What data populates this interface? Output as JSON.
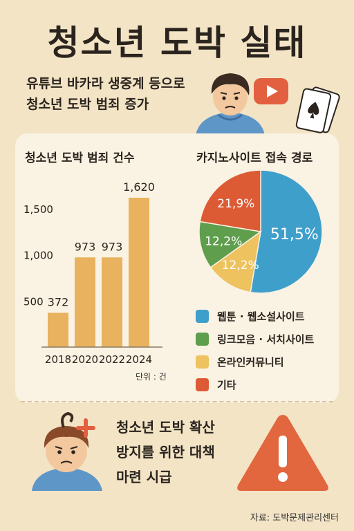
{
  "title": "청소년 도박 실태",
  "subtitle": {
    "line1": "유튜브 바카라 생중계 등으로",
    "line2": "청소년 도박 범죄 증가"
  },
  "bar_panel": {
    "heading": "청소년 도박 범죄 건수",
    "unit_note": "단위 : 건"
  },
  "pie_panel": {
    "heading": "카지노사이트 접속 경로"
  },
  "policy": {
    "line1": "청소년 도박 확산",
    "line2": "방지를 위한 대책",
    "line3": "마련 시급"
  },
  "source": "자료: 도박문제관리센터",
  "colors": {
    "bar": "#e9b25e",
    "slice_blue": "#3f9fcb",
    "slice_yellow": "#edc25f",
    "slice_green": "#5e9e4d",
    "slice_red": "#dc5b34",
    "warning": "#e2673e"
  },
  "icons": [
    "boy-avatar-icon",
    "play-button-icon",
    "playing-card-icon",
    "worried-avatar-icon",
    "warning-icon"
  ],
  "chart_data": [
    {
      "type": "bar",
      "title": "청소년 도박 범죄 건수",
      "categories": [
        "2018",
        "2020",
        "2022",
        "2024"
      ],
      "values": [
        372,
        973,
        973,
        1620
      ],
      "data_labels": [
        "372",
        "973",
        "973",
        "1,620"
      ],
      "yticks": [
        "500",
        "1,000",
        "1,500"
      ],
      "ylim": [
        0,
        1800
      ],
      "grid": false
    },
    {
      "type": "pie",
      "title": "카지노사이트 접속 경로",
      "categories": [
        "웹툰 · 웹소설사이트",
        "링크모음 · 서치사이트",
        "온라인커뮤니티",
        "기타"
      ],
      "values": [
        51.5,
        12.2,
        12.2,
        21.9
      ],
      "data_labels": [
        "51,5%",
        "12,2%",
        "12,2%",
        "21,9%"
      ],
      "legend_position": "bottom"
    }
  ]
}
